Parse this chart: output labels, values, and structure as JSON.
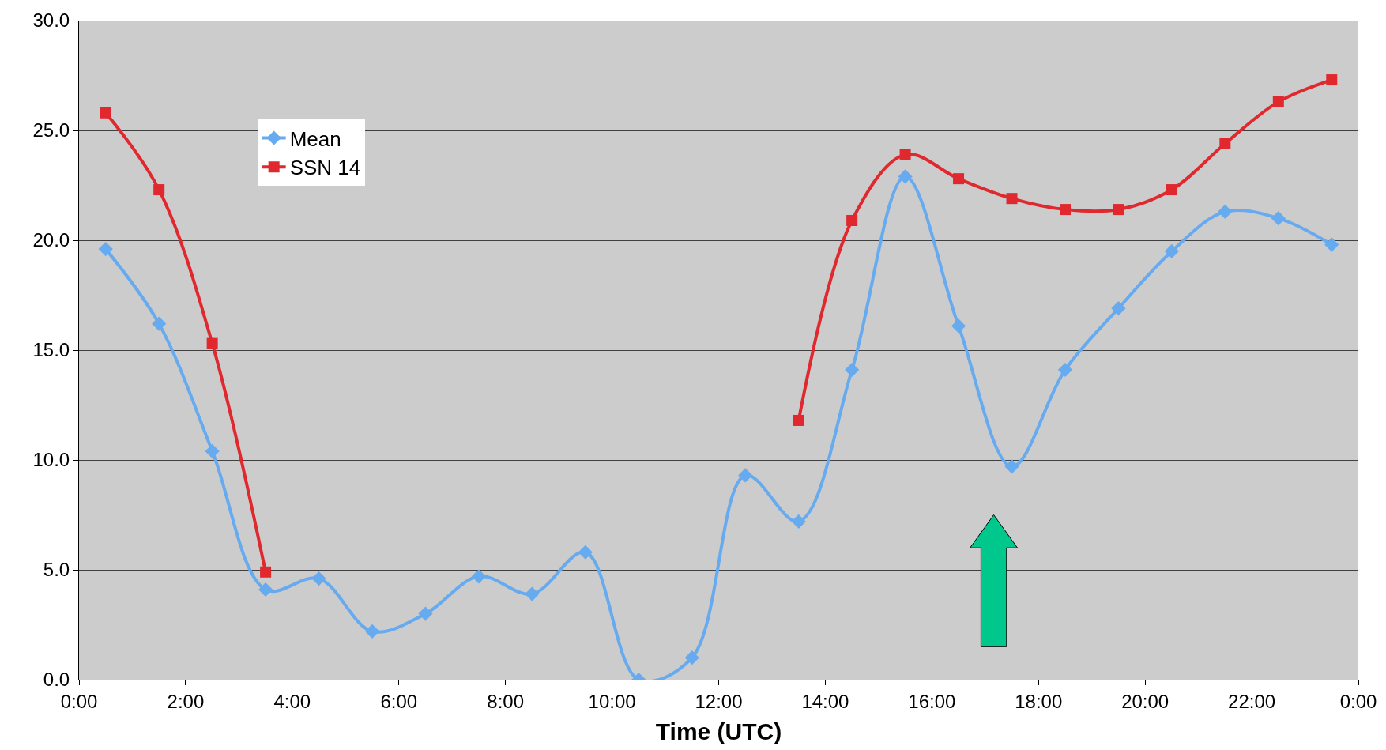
{
  "chart_data": {
    "type": "line",
    "xlabel": "Time (UTC)",
    "x": [
      0.5,
      1.5,
      2.5,
      3.5,
      4.5,
      5.5,
      6.5,
      7.5,
      8.5,
      9.5,
      10.5,
      11.5,
      12.5,
      13.5,
      14.5,
      15.5,
      16.5,
      17.5,
      18.5,
      19.5,
      20.5,
      21.5,
      22.5,
      23.5
    ],
    "series": [
      {
        "name": "Mean",
        "color": "#66aaf0",
        "marker": "diamond",
        "values": [
          19.6,
          16.2,
          10.4,
          4.1,
          4.6,
          2.2,
          3.0,
          4.7,
          3.9,
          5.8,
          0.0,
          1.0,
          9.3,
          7.2,
          14.1,
          22.9,
          16.1,
          9.7,
          14.1,
          16.9,
          19.5,
          21.3,
          21.0,
          19.8
        ]
      },
      {
        "name": "SSN 14",
        "color": "#e0282e",
        "marker": "square",
        "values": [
          25.8,
          22.3,
          15.3,
          4.9,
          null,
          null,
          null,
          null,
          null,
          null,
          null,
          null,
          null,
          11.8,
          20.9,
          23.9,
          22.8,
          21.9,
          21.4,
          21.4,
          22.3,
          24.4,
          26.3,
          27.3
        ]
      }
    ],
    "xlim": [
      0,
      24
    ],
    "xticks": [
      {
        "value": 0,
        "label": "0:00"
      },
      {
        "value": 2,
        "label": "2:00"
      },
      {
        "value": 4,
        "label": "4:00"
      },
      {
        "value": 6,
        "label": "6:00"
      },
      {
        "value": 8,
        "label": "8:00"
      },
      {
        "value": 10,
        "label": "10:00"
      },
      {
        "value": 12,
        "label": "12:00"
      },
      {
        "value": 14,
        "label": "14:00"
      },
      {
        "value": 16,
        "label": "16:00"
      },
      {
        "value": 18,
        "label": "18:00"
      },
      {
        "value": 20,
        "label": "20:00"
      },
      {
        "value": 22,
        "label": "22:00"
      },
      {
        "value": 24,
        "label": "0:00"
      }
    ],
    "ylim": [
      0,
      30
    ],
    "yticks": [
      {
        "value": 0,
        "label": "0.0"
      },
      {
        "value": 5,
        "label": "5.0"
      },
      {
        "value": 10,
        "label": "10.0"
      },
      {
        "value": 15,
        "label": "15.0"
      },
      {
        "value": 20,
        "label": "20.0"
      },
      {
        "value": 25,
        "label": "25.0"
      },
      {
        "value": 30,
        "label": "30.0"
      }
    ],
    "grid": "y",
    "legend": "top left",
    "line_style": "solid"
  }
}
